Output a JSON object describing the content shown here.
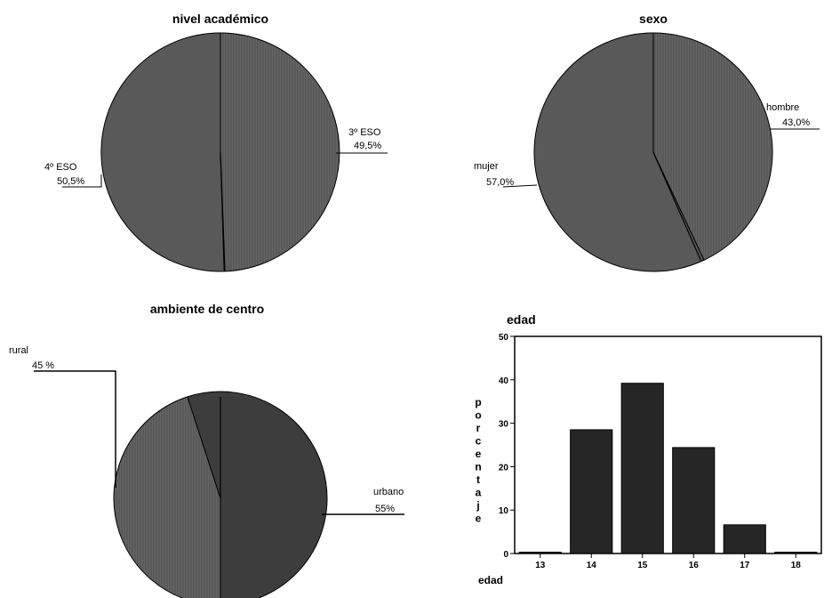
{
  "chart_data": [
    {
      "type": "pie",
      "title": "nivel académico",
      "categories": [
        "3º ESO",
        "4º ESO"
      ],
      "values": [
        49.5,
        50.5
      ],
      "labels": [
        "49,5%",
        "50,5%"
      ]
    },
    {
      "type": "pie",
      "title": "sexo",
      "categories": [
        "hombre",
        "mujer"
      ],
      "values": [
        43.0,
        57.0
      ],
      "labels": [
        "43,0%",
        "57,0%"
      ]
    },
    {
      "type": "pie",
      "title": "ambiente de centro",
      "categories": [
        "rural",
        "urbano"
      ],
      "values": [
        45,
        55
      ],
      "labels": [
        "45 %",
        "55%"
      ]
    },
    {
      "type": "bar",
      "title": "edad",
      "xlabel": "edad",
      "ylabel": "porcentaje",
      "categories": [
        "13",
        "14",
        "15",
        "16",
        "17",
        "18"
      ],
      "values": [
        0.3,
        28.5,
        39.2,
        24.4,
        6.6,
        0.3
      ],
      "ylim": [
        0,
        50
      ],
      "yticks": [
        "0",
        "10",
        "20",
        "30",
        "40",
        "50"
      ],
      "grid": false
    }
  ]
}
